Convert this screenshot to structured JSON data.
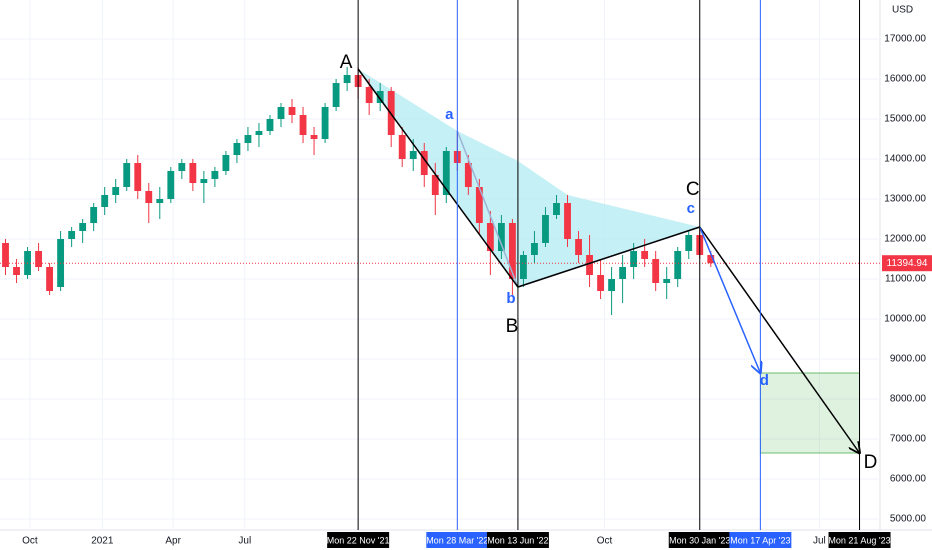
{
  "chart_data": {
    "type": "candlestick",
    "currency": "USD",
    "x": [
      "2020-08-31",
      "2020-09-14",
      "2020-09-28",
      "2020-10-12",
      "2020-10-26",
      "2020-11-09",
      "2020-11-23",
      "2020-12-07",
      "2020-12-21",
      "2021-01-04",
      "2021-01-18",
      "2021-02-01",
      "2021-02-15",
      "2021-03-01",
      "2021-03-15",
      "2021-03-29",
      "2021-04-12",
      "2021-04-26",
      "2021-05-10",
      "2021-05-24",
      "2021-06-07",
      "2021-06-21",
      "2021-07-05",
      "2021-07-19",
      "2021-08-02",
      "2021-08-16",
      "2021-08-30",
      "2021-09-13",
      "2021-09-27",
      "2021-10-11",
      "2021-10-25",
      "2021-11-08",
      "2021-11-22",
      "2021-12-06",
      "2021-12-20",
      "2022-01-03",
      "2022-01-17",
      "2022-01-31",
      "2022-02-14",
      "2022-02-28",
      "2022-03-14",
      "2022-03-28",
      "2022-04-11",
      "2022-04-25",
      "2022-05-09",
      "2022-05-23",
      "2022-06-06",
      "2022-06-20",
      "2022-07-04",
      "2022-07-18",
      "2022-08-01",
      "2022-08-15",
      "2022-08-29",
      "2022-09-12",
      "2022-09-26",
      "2022-10-10",
      "2022-10-24",
      "2022-11-07",
      "2022-11-21",
      "2022-12-05",
      "2022-12-19",
      "2023-01-02",
      "2023-01-16",
      "2023-01-30",
      "2023-02-13"
    ],
    "open": [
      11900,
      11300,
      11100,
      11700,
      11300,
      10800,
      12000,
      12200,
      12400,
      12800,
      13100,
      13300,
      13900,
      13200,
      12900,
      13000,
      13700,
      13900,
      13400,
      13500,
      13700,
      14100,
      14400,
      14600,
      14700,
      15000,
      15300,
      15100,
      14600,
      14500,
      15300,
      15900,
      16100,
      15800,
      15400,
      15700,
      14600,
      14000,
      14200,
      13600,
      13100,
      14200,
      13900,
      13300,
      12400,
      11700,
      12400,
      11000,
      11600,
      11900,
      12600,
      12900,
      12000,
      11600,
      11100,
      10700,
      11000,
      11300,
      11700,
      11500,
      10900,
      11000,
      11700,
      12100,
      11600
    ],
    "high": [
      12000,
      11500,
      11800,
      11900,
      11400,
      12200,
      12300,
      12500,
      12900,
      13300,
      13500,
      14000,
      14100,
      13400,
      13300,
      13800,
      14000,
      14000,
      13700,
      13800,
      14200,
      14500,
      14800,
      14900,
      15100,
      15400,
      15500,
      15300,
      14800,
      15400,
      16000,
      16300,
      16300,
      16000,
      15900,
      15800,
      14800,
      14500,
      14400,
      13900,
      14300,
      14700,
      14100,
      13500,
      12700,
      12600,
      12500,
      11700,
      12200,
      12800,
      13100,
      13100,
      12200,
      12100,
      11500,
      11300,
      11600,
      11900,
      12000,
      11700,
      11300,
      11800,
      12200,
      12300,
      11700
    ],
    "low": [
      11100,
      10900,
      11000,
      11200,
      10600,
      10700,
      11800,
      11900,
      12200,
      12600,
      12900,
      13200,
      13000,
      12400,
      12500,
      12900,
      13500,
      13200,
      12900,
      13300,
      13600,
      13900,
      14200,
      14300,
      14600,
      14800,
      14900,
      14400,
      14100,
      14400,
      15200,
      15700,
      15500,
      15100,
      15200,
      14300,
      13800,
      13700,
      13300,
      12600,
      12900,
      13700,
      13100,
      12100,
      11100,
      11500,
      10600,
      10800,
      11400,
      11800,
      12500,
      11800,
      11400,
      10800,
      10500,
      10100,
      10400,
      11000,
      11300,
      10700,
      10500,
      10800,
      11500,
      11500,
      11300
    ],
    "close": [
      11300,
      11100,
      11700,
      11300,
      10700,
      12000,
      12200,
      12400,
      12800,
      13100,
      13300,
      13900,
      13200,
      12900,
      13000,
      13700,
      13900,
      13400,
      13500,
      13700,
      14100,
      14400,
      14600,
      14700,
      15000,
      15300,
      15100,
      14600,
      14500,
      15300,
      15900,
      16100,
      15800,
      15400,
      15700,
      14600,
      14000,
      14200,
      13600,
      13100,
      14200,
      13900,
      13300,
      12400,
      11700,
      12400,
      11000,
      11600,
      11900,
      12600,
      12900,
      12000,
      11600,
      11100,
      10700,
      11000,
      11300,
      11700,
      11500,
      10900,
      11000,
      11700,
      12100,
      11600,
      11394.94
    ],
    "up_color": "#089981",
    "down_color": "#f23645",
    "last_price": 11394.94,
    "xlim": [
      "2020-08-24",
      "2023-09-16"
    ],
    "ylim": [
      4725,
      17975
    ],
    "yticks": [
      {
        "value": 5000,
        "label": "5000.00"
      },
      {
        "value": 6000,
        "label": "6000.00"
      },
      {
        "value": 7000,
        "label": "7000.00"
      },
      {
        "value": 8000,
        "label": "8000.00"
      },
      {
        "value": 9000,
        "label": "9000.00"
      },
      {
        "value": 10000,
        "label": "10000.00"
      },
      {
        "value": 11000,
        "label": "11000.00"
      },
      {
        "value": 12000,
        "label": "12000.00"
      },
      {
        "value": 13000,
        "label": "13000.00"
      },
      {
        "value": 14000,
        "label": "14000.00"
      },
      {
        "value": 15000,
        "label": "15000.00"
      },
      {
        "value": 16000,
        "label": "16000.00"
      },
      {
        "value": 17000,
        "label": "17000.00"
      }
    ],
    "xticks": [
      {
        "value": "2020-10-01",
        "label": "Oct"
      },
      {
        "value": "2021-01-01",
        "label": "2021"
      },
      {
        "value": "2021-04-01",
        "label": "Apr"
      },
      {
        "value": "2021-07-01",
        "label": "Jul"
      },
      {
        "value": "2022-10-01",
        "label": "Oct"
      },
      {
        "value": "2023-07-01",
        "label": "Jul"
      }
    ],
    "grid": true,
    "markers": [
      {
        "x": "2021-11-22",
        "label": "Mon 22 Nov '21",
        "color": "#000000"
      },
      {
        "x": "2022-03-28",
        "label": "Mon 28 Mar '22",
        "color": "#2962ff"
      },
      {
        "x": "2022-06-13",
        "label": "Mon 13 Jun '22",
        "color": "#000000"
      },
      {
        "x": "2023-01-30",
        "label": "Mon 30 Jan '23",
        "color": "#000000"
      },
      {
        "x": "2023-04-17",
        "label": "Mon 17 Apr '23",
        "color": "#2962ff"
      },
      {
        "x": "2023-08-21",
        "label": "Mon 21 Aug '23",
        "color": "#000000"
      }
    ],
    "pattern": {
      "points": [
        {
          "label": "A",
          "x": "2021-11-22",
          "y": 16250,
          "color": "#000000"
        },
        {
          "label": "a",
          "x": "2022-03-28",
          "y": 14700,
          "color": "#2962ff"
        },
        {
          "label": "B",
          "x": "2022-06-13",
          "y": 10800,
          "color": "#000000"
        },
        {
          "label": "b",
          "x": "2022-06-13",
          "y": 10800,
          "color": "#2962ff"
        },
        {
          "label": "C",
          "x": "2023-01-30",
          "y": 12300,
          "color": "#000000"
        },
        {
          "label": "c",
          "x": "2023-01-30",
          "y": 12300,
          "color": "#2962ff"
        },
        {
          "label": "d",
          "x": "2023-04-17",
          "y": 8650,
          "color": "#2962ff"
        },
        {
          "label": "D",
          "x": "2023-08-21",
          "y": 6650,
          "color": "#000000"
        }
      ],
      "shading": {
        "x": [
          "2021-11-22",
          "2022-03-28",
          "2022-06-13",
          "2022-08-15",
          "2023-01-30",
          "2022-06-13"
        ],
        "y": [
          16250,
          14700,
          13950,
          13100,
          12300,
          10800
        ]
      }
    }
  }
}
